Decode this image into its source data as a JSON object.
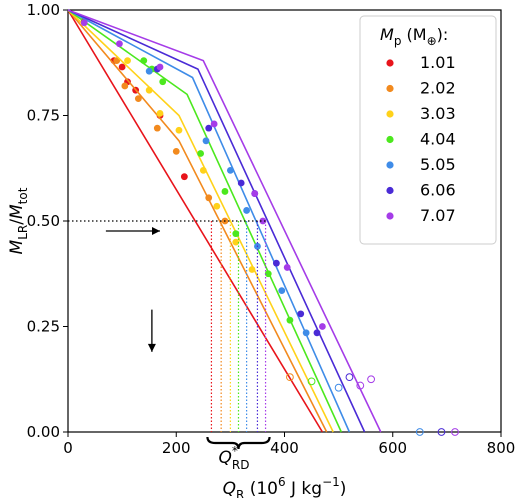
{
  "chart_data": {
    "type": "line",
    "title": "",
    "xlabel": "Q_R (10^6 J kg^-1)",
    "ylabel": "M_LR/M_tot",
    "xlim": [
      0,
      800
    ],
    "ylim": [
      0,
      1.0
    ],
    "x_ticks": [
      "0",
      "200",
      "400",
      "600",
      "800"
    ],
    "y_ticks": [
      "0.00",
      "0.25",
      "0.50",
      "0.75",
      "1.00"
    ],
    "grid": false,
    "legend": {
      "title_text": "Mp (M⊕):",
      "placement": "top-right"
    },
    "annotation": "Q*_RD",
    "reference_level": 0.5,
    "series": [
      {
        "name": "1.01",
        "color": "#e8141b",
        "fit": [
          [
            0,
            1.0
          ],
          [
            470,
            0.0
          ]
        ],
        "qrd": 265,
        "points": [
          [
            30,
            0.975
          ],
          [
            85,
            0.88
          ],
          [
            100,
            0.865
          ],
          [
            110,
            0.83
          ],
          [
            125,
            0.81
          ],
          [
            170,
            0.75
          ],
          [
            215,
            0.605
          ]
        ],
        "open_points": []
      },
      {
        "name": "2.02",
        "color": "#f28a1e",
        "fit": [
          [
            0,
            1.0
          ],
          [
            205,
            0.69
          ],
          [
            478,
            0.0
          ]
        ],
        "qrd": 283,
        "points": [
          [
            90,
            0.88
          ],
          [
            105,
            0.82
          ],
          [
            130,
            0.79
          ],
          [
            165,
            0.72
          ],
          [
            200,
            0.665
          ],
          [
            260,
            0.555
          ],
          [
            290,
            0.5
          ]
        ],
        "open_points": [
          [
            410,
            0.13
          ]
        ]
      },
      {
        "name": "3.03",
        "color": "#ffd21a",
        "fit": [
          [
            0,
            1.0
          ],
          [
            205,
            0.75
          ],
          [
            490,
            0.0
          ]
        ],
        "qrd": 300,
        "points": [
          [
            110,
            0.88
          ],
          [
            150,
            0.81
          ],
          [
            170,
            0.755
          ],
          [
            205,
            0.715
          ],
          [
            250,
            0.62
          ],
          [
            275,
            0.535
          ],
          [
            310,
            0.45
          ],
          [
            340,
            0.385
          ]
        ],
        "open_points": []
      },
      {
        "name": "4.04",
        "color": "#4ce81e",
        "fit": [
          [
            0,
            1.0
          ],
          [
            220,
            0.8
          ],
          [
            505,
            0.0
          ]
        ],
        "qrd": 315,
        "points": [
          [
            140,
            0.88
          ],
          [
            155,
            0.86
          ],
          [
            175,
            0.83
          ],
          [
            245,
            0.66
          ],
          [
            290,
            0.57
          ],
          [
            310,
            0.47
          ],
          [
            370,
            0.375
          ],
          [
            410,
            0.265
          ]
        ],
        "open_points": [
          [
            450,
            0.12
          ]
        ]
      },
      {
        "name": "5.05",
        "color": "#3f8ce8",
        "fit": [
          [
            0,
            1.0
          ],
          [
            230,
            0.84
          ],
          [
            520,
            0.0
          ]
        ],
        "qrd": 330,
        "points": [
          [
            150,
            0.855
          ],
          [
            255,
            0.69
          ],
          [
            300,
            0.62
          ],
          [
            330,
            0.525
          ],
          [
            350,
            0.44
          ],
          [
            395,
            0.335
          ],
          [
            440,
            0.235
          ]
        ],
        "open_points": [
          [
            500,
            0.105
          ],
          [
            650,
            0.0
          ]
        ]
      },
      {
        "name": "6.06",
        "color": "#4a2bd6",
        "fit": [
          [
            0,
            1.0
          ],
          [
            240,
            0.86
          ],
          [
            548,
            0.0
          ]
        ],
        "qrd": 350,
        "points": [
          [
            165,
            0.86
          ],
          [
            260,
            0.72
          ],
          [
            320,
            0.59
          ],
          [
            345,
            0.565
          ],
          [
            385,
            0.4
          ],
          [
            430,
            0.28
          ],
          [
            460,
            0.235
          ]
        ],
        "open_points": [
          [
            520,
            0.13
          ],
          [
            690,
            0.0
          ]
        ]
      },
      {
        "name": "7.07",
        "color": "#a53ce8",
        "fit": [
          [
            0,
            1.0
          ],
          [
            250,
            0.88
          ],
          [
            578,
            0.0
          ]
        ],
        "qrd": 365,
        "points": [
          [
            30,
            0.97
          ],
          [
            95,
            0.92
          ],
          [
            170,
            0.865
          ],
          [
            270,
            0.73
          ],
          [
            345,
            0.565
          ],
          [
            360,
            0.5
          ],
          [
            405,
            0.39
          ],
          [
            470,
            0.25
          ]
        ],
        "open_points": [
          [
            540,
            0.11
          ],
          [
            560,
            0.125
          ],
          [
            715,
            0.0
          ]
        ]
      }
    ]
  }
}
